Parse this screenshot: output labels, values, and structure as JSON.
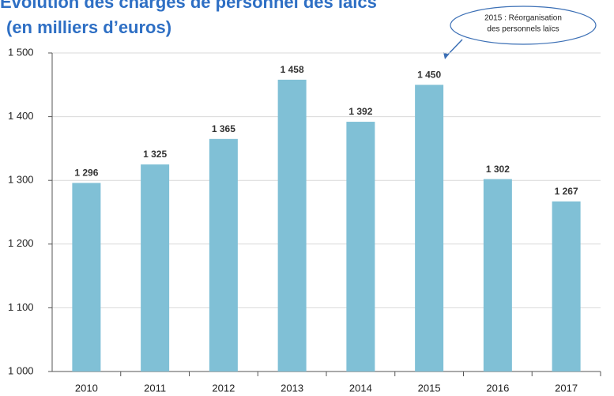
{
  "chart_data": {
    "type": "bar",
    "title": "Évolution des charges de personnel des laïcs",
    "subtitle": "(en milliers d’euros)",
    "annotation": [
      "2015 : Réorganisation",
      "des personnels laïcs"
    ],
    "categories": [
      "2010",
      "2011",
      "2012",
      "2013",
      "2014",
      "2015",
      "2016",
      "2017"
    ],
    "values": [
      1296,
      1325,
      1365,
      1458,
      1392,
      1450,
      1302,
      1267
    ],
    "value_labels": [
      "1 296",
      "1 325",
      "1 365",
      "1 458",
      "1 392",
      "1 450",
      "1 302",
      "1 267"
    ],
    "color": "#80c0d6",
    "ylim": [
      1000,
      1500
    ],
    "yticks": [
      {
        "value": 1000,
        "label": "1 000"
      },
      {
        "value": 1100,
        "label": "1 100"
      },
      {
        "value": 1200,
        "label": "1 200"
      },
      {
        "value": 1300,
        "label": "1 300"
      },
      {
        "value": 1400,
        "label": "1 400"
      },
      {
        "value": 1500,
        "label": "1 500"
      }
    ],
    "grid": true
  }
}
